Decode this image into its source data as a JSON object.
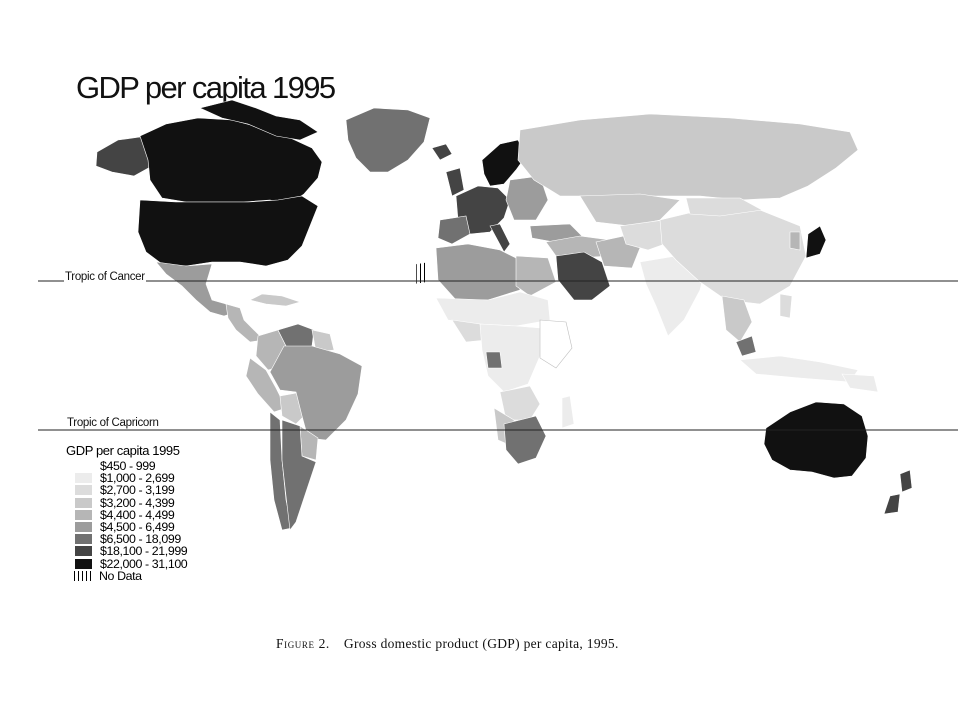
{
  "title": "GDP per capita 1995",
  "tropics": {
    "cancer_label": "Tropic of Cancer",
    "capricorn_label": "Tropic of Capricorn"
  },
  "legend": {
    "title": "GDP per capita 1995",
    "items": [
      {
        "label": "$450 - 999",
        "color": "#ffffff"
      },
      {
        "label": "$1,000 - 2,699",
        "color": "#ececec"
      },
      {
        "label": "$2,700 - 3,199",
        "color": "#dcdcdc"
      },
      {
        "label": "$3,200 - 4,399",
        "color": "#c9c9c9"
      },
      {
        "label": "$4,400 - 4,499",
        "color": "#b6b6b6"
      },
      {
        "label": "$4,500 - 6,499",
        "color": "#9c9c9c"
      },
      {
        "label": "$6,500 - 18,099",
        "color": "#717171"
      },
      {
        "label": "$18,100 - 21,999",
        "color": "#444444"
      },
      {
        "label": "$22,000 - 31,100",
        "color": "#111111"
      },
      {
        "label": "No Data",
        "color": "hatch"
      }
    ]
  },
  "caption": {
    "figure_label": "Figure 2.",
    "text": "Gross domestic product (GDP) per capita, 1995."
  }
}
